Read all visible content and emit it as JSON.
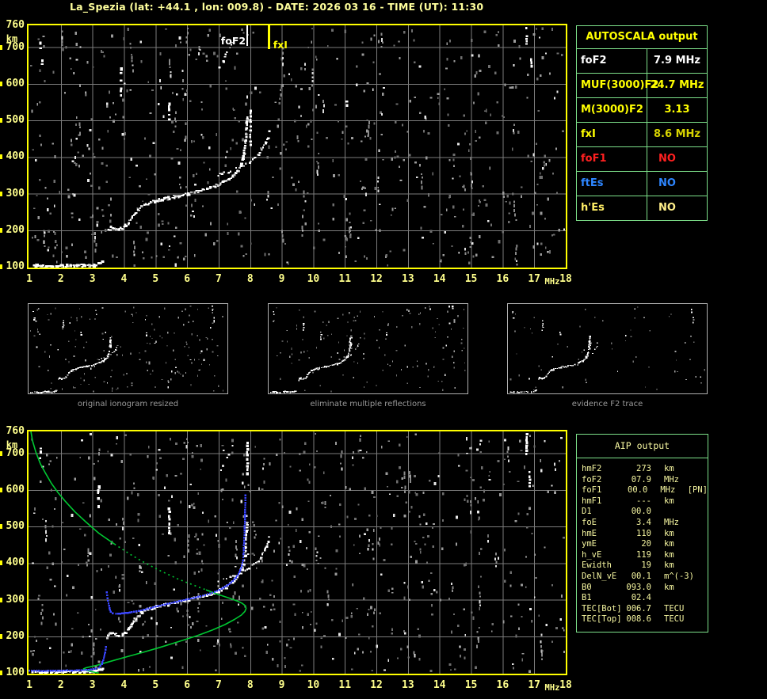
{
  "title": "La_Spezia (lat: +44.1 , lon: 009.8) - DATE: 2026 03 16 - TIME (UT): 11:30",
  "colors": {
    "background": "#000000",
    "plot_border": "#ffff00",
    "grid": "#7d7d7d",
    "axis_text": "#ffff8c",
    "trace": "#ffffff",
    "profile_green": "#00c832",
    "restored_blue": "#3a46ff",
    "table_border": "#7de08a",
    "autoscala_header": "#ffff00",
    "aip_text": "#f6f6a0",
    "thumb_border": "#b0b0b0",
    "caption_text": "#9a9a9a",
    "marker_foF2": "#ffffff",
    "marker_fxI": "#ffff00"
  },
  "autoscala": {
    "header": "AUTOSCALA output",
    "rows": [
      {
        "label": "foF2",
        "value": "7.9 MHz",
        "color": "#ffffff",
        "value_color": "#ffffff",
        "align": "center"
      },
      {
        "label": "MUF(3000)F2",
        "value": "24.7 MHz",
        "color": "#ffff00",
        "value_color": "#ffff00",
        "align": "center"
      },
      {
        "label": "M(3000)F2",
        "value": "3.13",
        "color": "#ffff00",
        "value_color": "#ffff00",
        "align": "center"
      },
      {
        "label": "fxI",
        "value": "8.6 MHz",
        "color": "#ffff00",
        "value_color": "#d8d400",
        "align": "center"
      },
      {
        "label": "foF1",
        "value": "NO",
        "color": "#ff2020",
        "value_color": "#ff2020",
        "align": "left"
      },
      {
        "label": "ftEs",
        "value": "NO",
        "color": "#2e86ff",
        "value_color": "#2e86ff",
        "align": "left"
      },
      {
        "label": "h'Es",
        "value": "NO",
        "color": "#ffee66",
        "value_color": "#ffef8a",
        "align": "left"
      }
    ]
  },
  "aip": {
    "header": "AIP output",
    "rows": [
      {
        "label": "hmF2",
        "value": "273",
        "unit": "km",
        "note": ""
      },
      {
        "label": "foF2",
        "value": "07.9",
        "unit": "MHz",
        "note": ""
      },
      {
        "label": "foF1",
        "value": "00.0",
        "unit": "MHz",
        "note": "[PN]"
      },
      {
        "label": "hmF1",
        "value": "---",
        "unit": "km",
        "note": ""
      },
      {
        "label": "D1",
        "value": "00.0",
        "unit": "",
        "note": ""
      },
      {
        "label": "foE",
        "value": "3.4",
        "unit": "MHz",
        "note": ""
      },
      {
        "label": "hmE",
        "value": "110",
        "unit": "km",
        "note": ""
      },
      {
        "label": "ymE",
        "value": "20",
        "unit": "km",
        "note": ""
      },
      {
        "label": "h_vE",
        "value": "119",
        "unit": "km",
        "note": ""
      },
      {
        "label": "Ewidth",
        "value": "19",
        "unit": "km",
        "note": ""
      },
      {
        "label": "DelN_vE",
        "value": "00.1",
        "unit": "m^(-3)",
        "note": ""
      },
      {
        "label": "B0",
        "value": "093.0",
        "unit": "km",
        "note": ""
      },
      {
        "label": "B1",
        "value": "02.4",
        "unit": "",
        "note": ""
      },
      {
        "label": "TEC[Bot]",
        "value": "006.7",
        "unit": "TECU",
        "note": ""
      },
      {
        "label": "TEC[Top]",
        "value": "008.6",
        "unit": "TECU",
        "note": ""
      }
    ]
  },
  "thumbnails": [
    {
      "caption": "original ionogram resized"
    },
    {
      "caption": "eliminate multiple reflections"
    },
    {
      "caption": "evidence F2 trace"
    }
  ],
  "chart_data": {
    "type": "scatter",
    "xlabel": "MHz",
    "ylabel": "km",
    "xlim": [
      1,
      18
    ],
    "ylim": [
      100,
      760
    ],
    "axes": {
      "x_ticks": [
        1,
        2,
        3,
        4,
        5,
        6,
        7,
        8,
        9,
        10,
        11,
        12,
        13,
        14,
        15,
        16,
        17,
        18
      ],
      "x_unit": "MHz",
      "y_ticks": [
        760,
        700,
        600,
        500,
        400,
        300,
        200,
        100
      ],
      "y_unit": "km",
      "grid": true
    },
    "shared_ionogram": {
      "E_trace": [
        [
          1.05,
          104
        ],
        [
          1.2,
          105
        ],
        [
          1.35,
          104
        ],
        [
          1.5,
          105
        ],
        [
          1.65,
          105
        ],
        [
          1.8,
          104
        ],
        [
          1.95,
          106
        ],
        [
          2.1,
          105
        ],
        [
          2.25,
          106
        ],
        [
          2.4,
          105
        ],
        [
          2.55,
          106
        ],
        [
          2.7,
          106
        ],
        [
          2.85,
          106
        ],
        [
          3.0,
          107
        ],
        [
          3.1,
          109
        ],
        [
          3.2,
          112
        ],
        [
          3.3,
          117
        ]
      ],
      "F_trace_o": [
        [
          3.45,
          198
        ],
        [
          3.5,
          206
        ],
        [
          3.55,
          211
        ],
        [
          3.62,
          209
        ],
        [
          3.72,
          206
        ],
        [
          3.82,
          205
        ],
        [
          3.92,
          208
        ],
        [
          4.02,
          214
        ],
        [
          4.12,
          223
        ],
        [
          4.22,
          236
        ],
        [
          4.32,
          248
        ],
        [
          4.42,
          258
        ],
        [
          4.52,
          266
        ],
        [
          4.62,
          271
        ],
        [
          4.72,
          275
        ],
        [
          4.82,
          278
        ],
        [
          4.95,
          282
        ],
        [
          5.1,
          285
        ],
        [
          5.25,
          288
        ],
        [
          5.4,
          291
        ],
        [
          5.55,
          294
        ],
        [
          5.7,
          296
        ],
        [
          5.85,
          299
        ],
        [
          6.0,
          302
        ],
        [
          6.15,
          305
        ],
        [
          6.3,
          308
        ],
        [
          6.45,
          311
        ],
        [
          6.6,
          315
        ],
        [
          6.75,
          319
        ],
        [
          6.9,
          324
        ],
        [
          7.0,
          328
        ],
        [
          7.1,
          332
        ],
        [
          7.2,
          337
        ],
        [
          7.3,
          343
        ],
        [
          7.4,
          350
        ],
        [
          7.5,
          359
        ],
        [
          7.58,
          367
        ],
        [
          7.65,
          376
        ],
        [
          7.7,
          386
        ],
        [
          7.74,
          398
        ],
        [
          7.77,
          412
        ],
        [
          7.8,
          428
        ],
        [
          7.82,
          446
        ],
        [
          7.84,
          466
        ],
        [
          7.86,
          490
        ],
        [
          7.88,
          515
        ]
      ],
      "F_trace_x": [
        [
          6.95,
          352
        ],
        [
          7.15,
          358
        ],
        [
          7.35,
          364
        ],
        [
          7.55,
          371
        ],
        [
          7.75,
          379
        ],
        [
          7.95,
          388
        ],
        [
          8.1,
          398
        ],
        [
          8.25,
          410
        ],
        [
          8.35,
          424
        ],
        [
          8.45,
          440
        ],
        [
          8.52,
          456
        ],
        [
          8.57,
          472
        ]
      ],
      "high_echoes": [
        [
          7.0,
          648
        ],
        [
          7.12,
          666
        ],
        [
          7.25,
          688
        ],
        [
          7.38,
          712
        ],
        [
          7.5,
          738
        ]
      ],
      "interference_streaks_top": [
        [
          1.35,
          688,
          716
        ],
        [
          1.4,
          650,
          667
        ],
        [
          3.9,
          572,
          645
        ],
        [
          5.42,
          502,
          560
        ],
        [
          8.0,
          432,
          530
        ],
        [
          11.05,
          534,
          554
        ],
        [
          16.75,
          700,
          756
        ],
        [
          16.9,
          630,
          670
        ]
      ],
      "interference_streaks_bottom": [
        [
          1.35,
          688,
          716
        ],
        [
          1.4,
          650,
          666
        ],
        [
          3.18,
          558,
          622
        ],
        [
          5.42,
          480,
          552
        ],
        [
          7.9,
          635,
          732
        ],
        [
          16.75,
          700,
          756
        ],
        [
          16.85,
          610,
          652
        ]
      ]
    },
    "top_plot": {
      "markers": [
        {
          "name": "foF2",
          "label": "foF2",
          "freq": 7.9,
          "color": "#ffffff"
        },
        {
          "name": "fxI",
          "label": "fxI",
          "freq": 8.6,
          "color": "#ffff00"
        }
      ]
    },
    "bottom_plot": {
      "restored_trace_E": [
        [
          1.0,
          106
        ],
        [
          1.15,
          106
        ],
        [
          1.3,
          106
        ],
        [
          1.45,
          105
        ],
        [
          1.6,
          106
        ],
        [
          1.75,
          106
        ],
        [
          1.9,
          106
        ],
        [
          2.05,
          106
        ],
        [
          2.2,
          107
        ],
        [
          2.35,
          106
        ],
        [
          2.5,
          107
        ],
        [
          2.65,
          107
        ],
        [
          2.8,
          108
        ],
        [
          2.95,
          109
        ],
        [
          3.1,
          111
        ],
        [
          3.2,
          114
        ],
        [
          3.3,
          124
        ],
        [
          3.36,
          140
        ],
        [
          3.4,
          156
        ],
        [
          3.43,
          171
        ]
      ],
      "restored_trace_F": [
        [
          3.45,
          320
        ],
        [
          3.48,
          304
        ],
        [
          3.51,
          290
        ],
        [
          3.54,
          277
        ],
        [
          3.58,
          267
        ],
        [
          3.64,
          263
        ],
        [
          3.75,
          262
        ],
        [
          3.88,
          262
        ],
        [
          4.0,
          263
        ],
        [
          4.12,
          264
        ],
        [
          4.25,
          266
        ],
        [
          4.4,
          268
        ],
        [
          4.55,
          271
        ],
        [
          4.7,
          274
        ],
        [
          4.85,
          277
        ],
        [
          5.0,
          281
        ],
        [
          5.15,
          284
        ],
        [
          5.3,
          287
        ],
        [
          5.45,
          290
        ],
        [
          5.6,
          293
        ],
        [
          5.75,
          296
        ],
        [
          5.9,
          299
        ],
        [
          6.05,
          302
        ],
        [
          6.2,
          305
        ],
        [
          6.35,
          308
        ],
        [
          6.5,
          311
        ],
        [
          6.65,
          315
        ],
        [
          6.8,
          319
        ],
        [
          6.95,
          324
        ],
        [
          7.1,
          330
        ],
        [
          7.22,
          336
        ],
        [
          7.34,
          343
        ],
        [
          7.45,
          351
        ],
        [
          7.55,
          360
        ],
        [
          7.63,
          370
        ],
        [
          7.69,
          381
        ],
        [
          7.74,
          394
        ],
        [
          7.77,
          408
        ],
        [
          7.79,
          424
        ],
        [
          7.8,
          442
        ],
        [
          7.81,
          462
        ],
        [
          7.82,
          484
        ],
        [
          7.83,
          508
        ],
        [
          7.84,
          545
        ],
        [
          7.85,
          585
        ]
      ],
      "electron_density_profile": [
        [
          1.05,
          760
        ],
        [
          1.1,
          735
        ],
        [
          1.2,
          705
        ],
        [
          1.35,
          672
        ],
        [
          1.5,
          648
        ],
        [
          1.7,
          618
        ],
        [
          1.9,
          594
        ],
        [
          2.15,
          568
        ],
        [
          2.45,
          540
        ],
        [
          2.8,
          512
        ],
        [
          3.2,
          482
        ],
        [
          3.7,
          452
        ],
        [
          4.2,
          424
        ],
        [
          4.7,
          399
        ],
        [
          5.2,
          377
        ],
        [
          5.7,
          357
        ],
        [
          6.2,
          340
        ],
        [
          6.6,
          327
        ],
        [
          7.0,
          314
        ],
        [
          7.35,
          304
        ],
        [
          7.6,
          296
        ],
        [
          7.75,
          290
        ],
        [
          7.85,
          283
        ],
        [
          7.87,
          276
        ],
        [
          7.83,
          268
        ],
        [
          7.72,
          258
        ],
        [
          7.5,
          246
        ],
        [
          7.2,
          232
        ],
        [
          6.8,
          217
        ],
        [
          6.3,
          201
        ],
        [
          5.75,
          186
        ],
        [
          5.15,
          170
        ],
        [
          4.55,
          155
        ],
        [
          4.0,
          142
        ],
        [
          3.55,
          131
        ],
        [
          3.35,
          126
        ],
        [
          3.15,
          121
        ],
        [
          2.95,
          117
        ],
        [
          2.8,
          114
        ],
        [
          2.72,
          111
        ],
        [
          2.8,
          107
        ],
        [
          2.95,
          104
        ],
        [
          3.1,
          101
        ],
        [
          3.2,
          100
        ]
      ],
      "profile_dash_segment": [
        11,
        17
      ]
    }
  }
}
